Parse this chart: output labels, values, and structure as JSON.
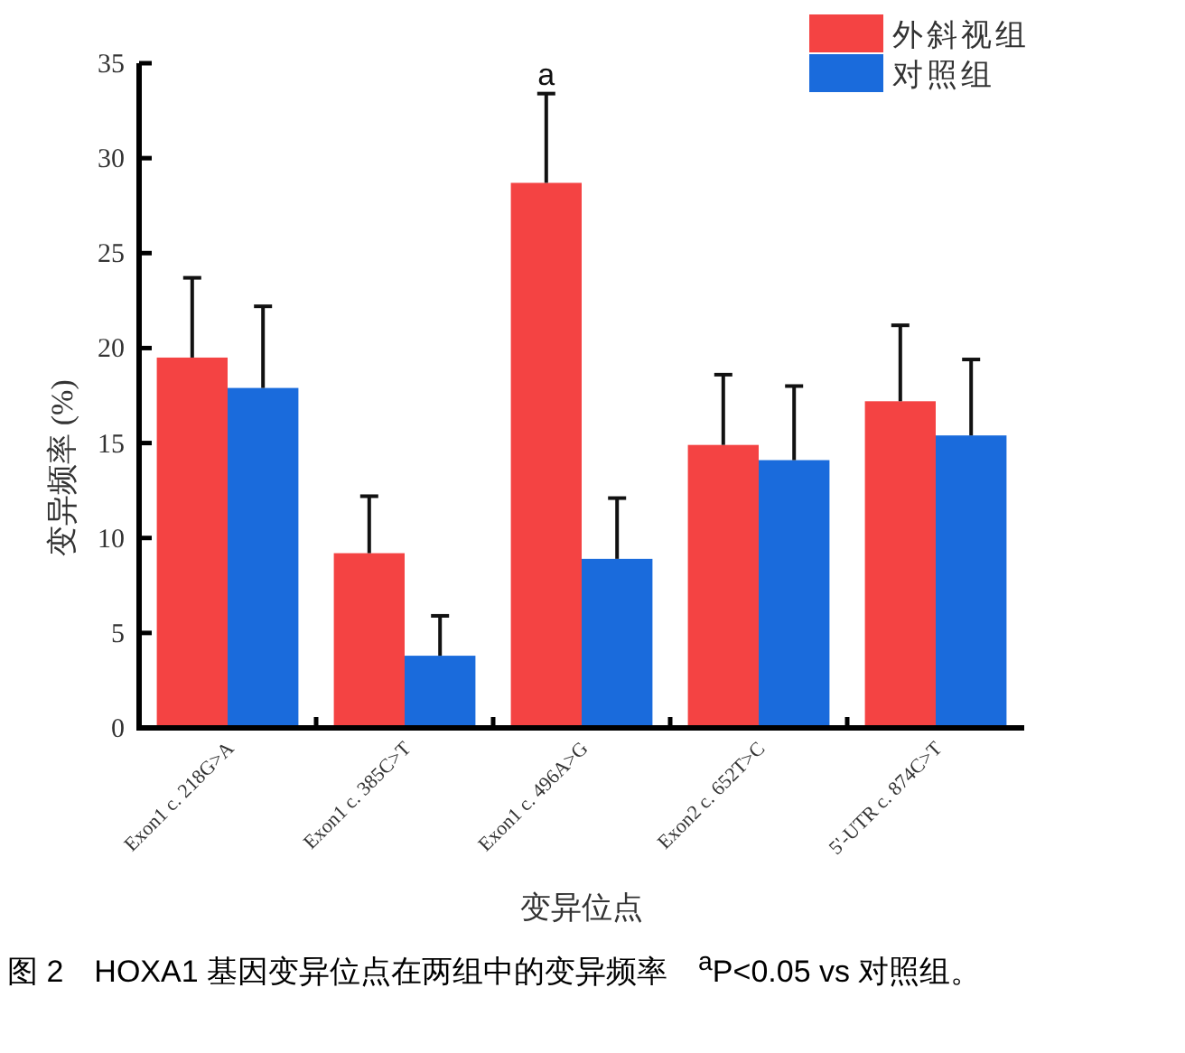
{
  "chart_data": {
    "type": "bar",
    "xlabel": "变异位点",
    "ylabel": "变异频率 (%)",
    "categories": [
      "Exon1 c. 218G>A",
      "Exon1 c. 385C>T",
      "Exon1 c. 496A>G",
      "Exon2 c. 652T>C",
      "5'-UTR c. 874C>T"
    ],
    "series": [
      {
        "name": "外斜视组",
        "color": "#f44343",
        "values": [
          19.5,
          9.2,
          28.7,
          14.9,
          17.2
        ],
        "errors": [
          [
            19.5,
            23.7
          ],
          [
            9.2,
            12.2
          ],
          [
            28.7,
            33.4
          ],
          [
            14.9,
            18.6
          ],
          [
            17.2,
            21.2
          ]
        ]
      },
      {
        "name": "对照组",
        "color": "#1a6bdc",
        "values": [
          17.9,
          3.8,
          8.9,
          14.1,
          15.4
        ],
        "errors": [
          [
            17.9,
            22.2
          ],
          [
            3.8,
            5.9
          ],
          [
            8.9,
            12.1
          ],
          [
            14.1,
            18.0
          ],
          [
            15.4,
            19.4
          ]
        ]
      }
    ],
    "ylim": [
      0,
      35
    ],
    "yticks": [
      0,
      5,
      10,
      15,
      20,
      25,
      30,
      35
    ],
    "legend": "top right",
    "grid": false,
    "annotations": [
      {
        "text": "a",
        "x": "Exon1 c. 496A>G",
        "y": 33.4
      },
      "图 2　HOXA1 基因变异位点在两组中的变异频率　$^{a}$P<0.05 vs 对照组。"
    ]
  }
}
